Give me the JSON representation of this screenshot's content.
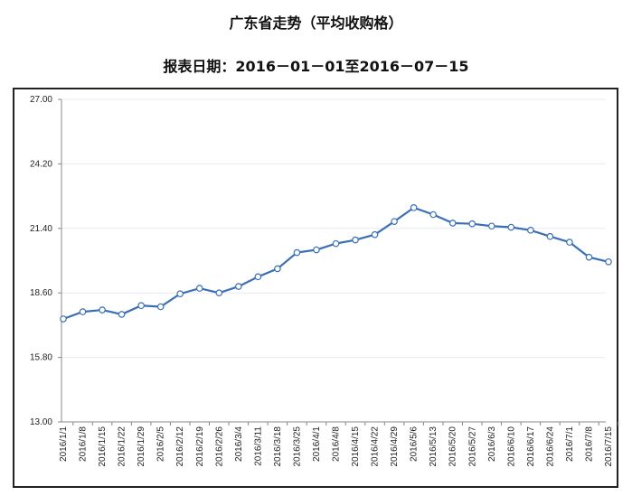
{
  "chart_data": {
    "type": "line",
    "title": "广东省走势（平均收购格）",
    "subtitle": "报表日期：2016－01－01至2016－07－15",
    "xlabel": "",
    "ylabel": "",
    "ylim": [
      13.0,
      27.0
    ],
    "yticks": [
      "13.00",
      "15.80",
      "18.60",
      "21.40",
      "24.20",
      "27.00"
    ],
    "grid": true,
    "categories": [
      "2016/1/1",
      "2016/1/8",
      "2016/1/15",
      "2016/1/22",
      "2016/1/29",
      "2016/2/5",
      "2016/2/12",
      "2016/2/19",
      "2016/2/26",
      "2016/3/4",
      "2016/3/11",
      "2016/3/18",
      "2016/3/25",
      "2016/4/1",
      "2016/4/8",
      "2016/4/15",
      "2016/4/22",
      "2016/4/29",
      "2016/5/6",
      "2016/5/13",
      "2016/5/20",
      "2016/5/27",
      "2016/6/3",
      "2016/6/10",
      "2016/6/17",
      "2016/6/24",
      "2016/7/1",
      "2016/7/8",
      "2016/7/15"
    ],
    "series": [
      {
        "name": "平均收购格",
        "color": "#3a6fb6",
        "values": [
          17.47,
          17.78,
          17.86,
          17.67,
          18.05,
          18.0,
          18.56,
          18.8,
          18.6,
          18.88,
          19.3,
          19.65,
          20.35,
          20.47,
          20.74,
          20.9,
          21.13,
          21.7,
          22.3,
          22.0,
          21.63,
          21.6,
          21.5,
          21.45,
          21.32,
          21.05,
          20.8,
          20.15,
          19.95
        ]
      }
    ]
  }
}
